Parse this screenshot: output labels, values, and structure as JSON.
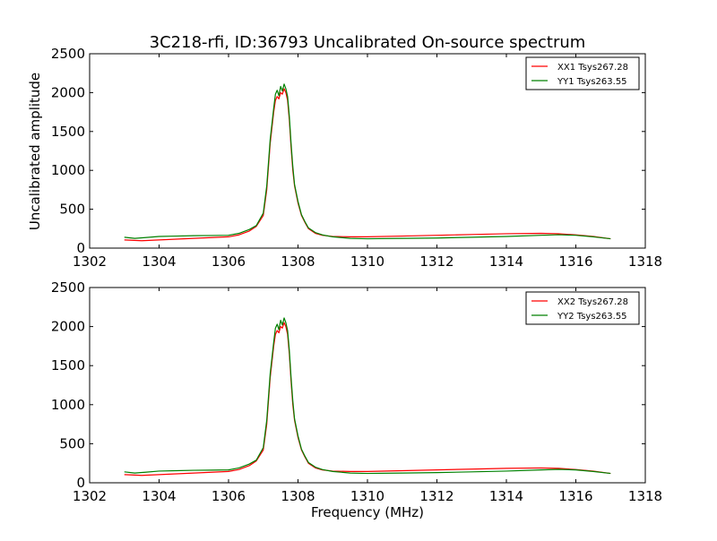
{
  "figure": {
    "title": "3C218-rfi, ID:36793 Uncalibrated On-source spectrum",
    "ylabel": "Uncalibrated amplitude",
    "xlabel": "Frequency (MHz)"
  },
  "chart_data": [
    {
      "type": "line",
      "title": "3C218-rfi, ID:36793 Uncalibrated On-source spectrum",
      "xlabel": "",
      "ylabel": "Uncalibrated amplitude",
      "xlim": [
        1302,
        1318
      ],
      "ylim": [
        0,
        2500
      ],
      "xticks": [
        "1302",
        "1304",
        "1306",
        "1308",
        "1310",
        "1312",
        "1314",
        "1316",
        "1318"
      ],
      "yticks": [
        "0",
        "500",
        "1000",
        "1500",
        "2000",
        "2500"
      ],
      "grid": false,
      "legend": "top-right",
      "series": [
        {
          "name": "XX1 Tsys267.28",
          "color": "#ff0000",
          "x": [
            1303.0,
            1303.5,
            1304.0,
            1304.5,
            1305.0,
            1305.5,
            1306.0,
            1306.3,
            1306.6,
            1306.8,
            1307.0,
            1307.1,
            1307.2,
            1307.3,
            1307.35,
            1307.4,
            1307.45,
            1307.5,
            1307.55,
            1307.6,
            1307.65,
            1307.7,
            1307.75,
            1307.8,
            1307.85,
            1307.9,
            1308.0,
            1308.1,
            1308.2,
            1308.3,
            1308.5,
            1308.7,
            1309.0,
            1309.5,
            1310.0,
            1311.0,
            1312.0,
            1313.0,
            1314.0,
            1315.0,
            1315.5,
            1316.0,
            1316.5,
            1317.0
          ],
          "y": [
            105,
            95,
            105,
            115,
            125,
            135,
            145,
            170,
            220,
            280,
            420,
            750,
            1350,
            1750,
            1900,
            1950,
            1920,
            2000,
            1980,
            2050,
            2000,
            1900,
            1650,
            1300,
            1000,
            800,
            580,
            420,
            330,
            250,
            190,
            165,
            150,
            145,
            145,
            155,
            165,
            175,
            185,
            190,
            185,
            170,
            150,
            120
          ]
        },
        {
          "name": "YY1 Tsys263.55",
          "color": "#008000",
          "x": [
            1303.0,
            1303.3,
            1303.6,
            1304.0,
            1304.5,
            1305.0,
            1305.5,
            1306.0,
            1306.3,
            1306.6,
            1306.8,
            1307.0,
            1307.1,
            1307.2,
            1307.3,
            1307.35,
            1307.4,
            1307.45,
            1307.5,
            1307.55,
            1307.6,
            1307.65,
            1307.7,
            1307.75,
            1307.8,
            1307.85,
            1307.9,
            1308.0,
            1308.1,
            1308.2,
            1308.3,
            1308.5,
            1308.7,
            1309.0,
            1309.5,
            1310.0,
            1311.0,
            1312.0,
            1313.0,
            1314.0,
            1315.0,
            1315.5,
            1316.0,
            1316.5,
            1317.0
          ],
          "y": [
            140,
            125,
            135,
            150,
            155,
            160,
            162,
            165,
            190,
            240,
            290,
            450,
            800,
            1400,
            1800,
            1980,
            2030,
            1960,
            2080,
            2020,
            2110,
            2050,
            1950,
            1700,
            1350,
            1050,
            820,
            600,
            430,
            340,
            260,
            200,
            170,
            145,
            125,
            120,
            125,
            130,
            140,
            150,
            165,
            172,
            165,
            145,
            120
          ]
        }
      ]
    },
    {
      "type": "line",
      "title": "",
      "xlabel": "Frequency (MHz)",
      "ylabel": "",
      "xlim": [
        1302,
        1318
      ],
      "ylim": [
        0,
        2500
      ],
      "xticks": [
        "1302",
        "1304",
        "1306",
        "1308",
        "1310",
        "1312",
        "1314",
        "1316",
        "1318"
      ],
      "yticks": [
        "0",
        "500",
        "1000",
        "1500",
        "2000",
        "2500"
      ],
      "grid": false,
      "legend": "top-right",
      "series": [
        {
          "name": "XX2 Tsys267.28",
          "color": "#ff0000",
          "x": [
            1303.0,
            1303.5,
            1304.0,
            1304.5,
            1305.0,
            1305.5,
            1306.0,
            1306.3,
            1306.6,
            1306.8,
            1307.0,
            1307.1,
            1307.2,
            1307.3,
            1307.35,
            1307.4,
            1307.45,
            1307.5,
            1307.55,
            1307.6,
            1307.65,
            1307.7,
            1307.75,
            1307.8,
            1307.85,
            1307.9,
            1308.0,
            1308.1,
            1308.2,
            1308.3,
            1308.5,
            1308.7,
            1309.0,
            1309.5,
            1310.0,
            1311.0,
            1312.0,
            1313.0,
            1314.0,
            1315.0,
            1315.5,
            1316.0,
            1316.5,
            1317.0
          ],
          "y": [
            105,
            95,
            105,
            115,
            125,
            135,
            145,
            170,
            220,
            280,
            420,
            750,
            1350,
            1750,
            1900,
            1950,
            1920,
            2000,
            1980,
            2050,
            2000,
            1900,
            1650,
            1300,
            1000,
            800,
            580,
            420,
            330,
            250,
            190,
            165,
            150,
            145,
            145,
            155,
            165,
            175,
            185,
            190,
            185,
            170,
            150,
            120
          ]
        },
        {
          "name": "YY2 Tsys263.55",
          "color": "#008000",
          "x": [
            1303.0,
            1303.3,
            1303.6,
            1304.0,
            1304.5,
            1305.0,
            1305.5,
            1306.0,
            1306.3,
            1306.6,
            1306.8,
            1307.0,
            1307.1,
            1307.2,
            1307.3,
            1307.35,
            1307.4,
            1307.45,
            1307.5,
            1307.55,
            1307.6,
            1307.65,
            1307.7,
            1307.75,
            1307.8,
            1307.85,
            1307.9,
            1308.0,
            1308.1,
            1308.2,
            1308.3,
            1308.5,
            1308.7,
            1309.0,
            1309.5,
            1310.0,
            1311.0,
            1312.0,
            1313.0,
            1314.0,
            1315.0,
            1315.5,
            1316.0,
            1316.5,
            1317.0
          ],
          "y": [
            140,
            125,
            135,
            150,
            155,
            160,
            162,
            165,
            190,
            240,
            290,
            450,
            800,
            1400,
            1800,
            1980,
            2030,
            1960,
            2080,
            2020,
            2110,
            2050,
            1950,
            1700,
            1350,
            1050,
            820,
            600,
            430,
            340,
            260,
            200,
            170,
            145,
            125,
            120,
            125,
            130,
            140,
            150,
            165,
            172,
            165,
            145,
            120
          ]
        }
      ]
    }
  ]
}
